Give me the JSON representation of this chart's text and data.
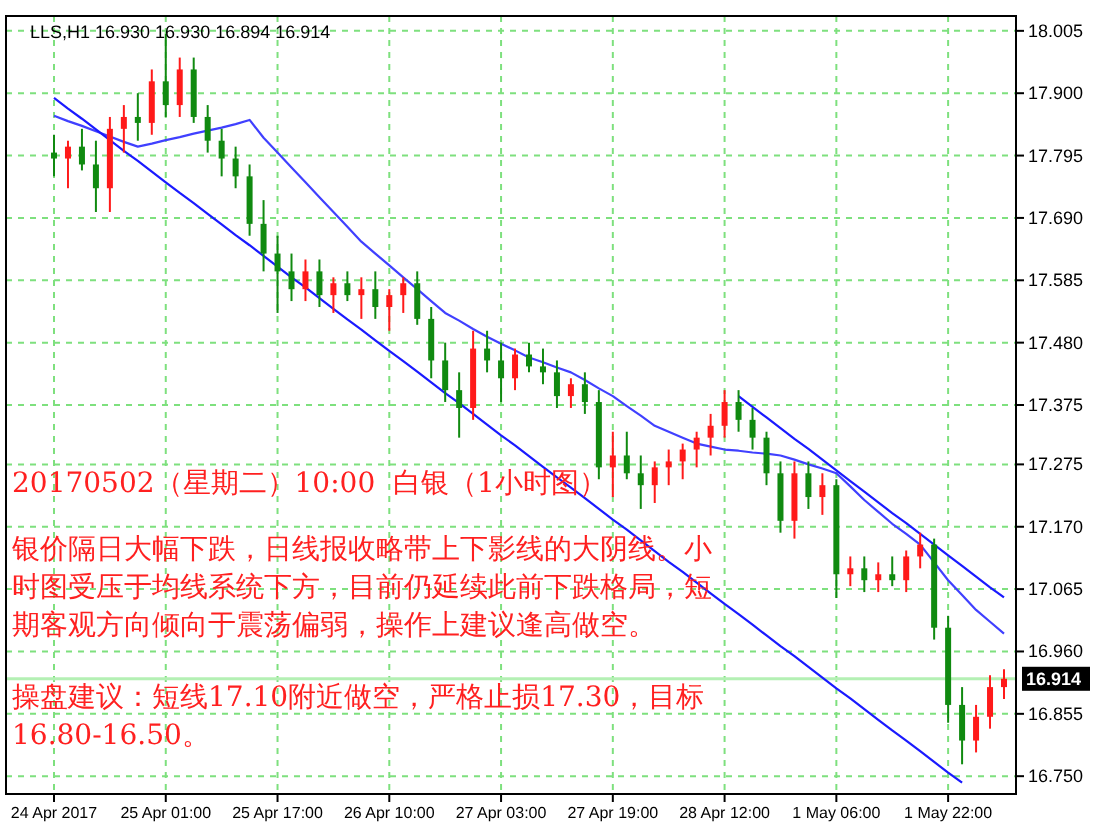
{
  "chart_data": {
    "type": "candlestick",
    "title": "LLS,H1  16.930 16.930 16.894 16.914",
    "categories": [
      "24 Apr 2017",
      null,
      null,
      null,
      null,
      null,
      null,
      null,
      "25 Apr 01:00",
      null,
      null,
      null,
      null,
      null,
      null,
      null,
      "25 Apr 17:00",
      null,
      null,
      null,
      null,
      null,
      null,
      null,
      "26 Apr 10:00",
      null,
      null,
      null,
      null,
      null,
      null,
      null,
      "27 Apr 03:00",
      null,
      null,
      null,
      null,
      null,
      null,
      null,
      "27 Apr 19:00",
      null,
      null,
      null,
      null,
      null,
      null,
      null,
      "28 Apr 12:00",
      null,
      null,
      null,
      null,
      null,
      null,
      null,
      "1 May 06:00",
      null,
      null,
      null,
      null,
      null,
      null,
      null,
      "1 May 22:00",
      null,
      null,
      null,
      null
    ],
    "ohlc": [
      [
        17.8,
        17.83,
        17.76,
        17.79
      ],
      [
        17.79,
        17.82,
        17.74,
        17.81
      ],
      [
        17.81,
        17.84,
        17.77,
        17.78
      ],
      [
        17.78,
        17.82,
        17.7,
        17.74
      ],
      [
        17.74,
        17.86,
        17.7,
        17.84
      ],
      [
        17.84,
        17.88,
        17.8,
        17.86
      ],
      [
        17.86,
        17.9,
        17.82,
        17.85
      ],
      [
        17.85,
        17.94,
        17.83,
        17.92
      ],
      [
        17.92,
        18.0,
        17.86,
        17.88
      ],
      [
        17.88,
        17.96,
        17.86,
        17.94
      ],
      [
        17.94,
        17.96,
        17.85,
        17.86
      ],
      [
        17.86,
        17.88,
        17.8,
        17.82
      ],
      [
        17.82,
        17.84,
        17.76,
        17.79
      ],
      [
        17.79,
        17.81,
        17.74,
        17.76
      ],
      [
        17.76,
        17.78,
        17.66,
        17.68
      ],
      [
        17.68,
        17.72,
        17.6,
        17.63
      ],
      [
        17.63,
        17.66,
        17.53,
        17.6
      ],
      [
        17.6,
        17.63,
        17.55,
        17.57
      ],
      [
        17.57,
        17.62,
        17.55,
        17.6
      ],
      [
        17.6,
        17.62,
        17.54,
        17.56
      ],
      [
        17.56,
        17.59,
        17.53,
        17.58
      ],
      [
        17.58,
        17.6,
        17.55,
        17.56
      ],
      [
        17.56,
        17.59,
        17.52,
        17.57
      ],
      [
        17.57,
        17.6,
        17.52,
        17.54
      ],
      [
        17.54,
        17.57,
        17.5,
        17.56
      ],
      [
        17.56,
        17.59,
        17.53,
        17.58
      ],
      [
        17.58,
        17.6,
        17.51,
        17.52
      ],
      [
        17.52,
        17.54,
        17.42,
        17.45
      ],
      [
        17.45,
        17.48,
        17.38,
        17.4
      ],
      [
        17.4,
        17.43,
        17.32,
        17.37
      ],
      [
        17.37,
        17.5,
        17.35,
        17.47
      ],
      [
        17.47,
        17.5,
        17.43,
        17.45
      ],
      [
        17.45,
        17.48,
        17.38,
        17.42
      ],
      [
        17.42,
        17.47,
        17.4,
        17.46
      ],
      [
        17.46,
        17.48,
        17.43,
        17.44
      ],
      [
        17.44,
        17.47,
        17.41,
        17.43
      ],
      [
        17.43,
        17.45,
        17.37,
        17.39
      ],
      [
        17.39,
        17.42,
        17.37,
        17.41
      ],
      [
        17.41,
        17.43,
        17.36,
        17.38
      ],
      [
        17.38,
        17.4,
        17.25,
        17.27
      ],
      [
        17.27,
        17.33,
        17.22,
        17.29
      ],
      [
        17.29,
        17.33,
        17.25,
        17.26
      ],
      [
        17.26,
        17.29,
        17.2,
        17.24
      ],
      [
        17.24,
        17.28,
        17.21,
        17.27
      ],
      [
        17.27,
        17.3,
        17.24,
        17.28
      ],
      [
        17.28,
        17.31,
        17.25,
        17.3
      ],
      [
        17.3,
        17.33,
        17.27,
        17.32
      ],
      [
        17.32,
        17.36,
        17.29,
        17.34
      ],
      [
        17.34,
        17.4,
        17.32,
        17.38
      ],
      [
        17.38,
        17.4,
        17.33,
        17.35
      ],
      [
        17.35,
        17.37,
        17.3,
        17.32
      ],
      [
        17.32,
        17.33,
        17.24,
        17.26
      ],
      [
        17.26,
        17.28,
        17.16,
        17.18
      ],
      [
        17.18,
        17.28,
        17.15,
        17.26
      ],
      [
        17.26,
        17.28,
        17.2,
        17.22
      ],
      [
        17.22,
        17.26,
        17.19,
        17.24
      ],
      [
        17.24,
        17.25,
        17.05,
        17.09
      ],
      [
        17.09,
        17.12,
        17.07,
        17.1
      ],
      [
        17.1,
        17.12,
        17.06,
        17.08
      ],
      [
        17.08,
        17.11,
        17.06,
        17.09
      ],
      [
        17.09,
        17.12,
        17.07,
        17.08
      ],
      [
        17.08,
        17.13,
        17.06,
        17.12
      ],
      [
        17.12,
        17.16,
        17.1,
        17.14
      ],
      [
        17.14,
        17.15,
        16.98,
        17.0
      ],
      [
        17.0,
        17.02,
        16.84,
        16.87
      ],
      [
        16.87,
        16.9,
        16.77,
        16.81
      ],
      [
        16.81,
        16.87,
        16.79,
        16.85
      ],
      [
        16.85,
        16.92,
        16.83,
        16.9
      ],
      [
        16.9,
        16.93,
        16.88,
        16.914
      ]
    ],
    "series": [
      {
        "type": "line",
        "color": "#4040ff",
        "values": [
          17.862,
          17.853,
          17.845,
          17.836,
          17.827,
          17.818,
          17.81,
          17.815,
          17.821,
          17.826,
          17.832,
          17.837,
          17.842,
          17.848,
          17.855,
          17.825,
          17.8,
          17.775,
          17.75,
          17.725,
          17.7,
          17.675,
          17.65,
          17.63,
          17.61,
          17.59,
          17.57,
          17.55,
          17.53,
          17.517,
          17.503,
          17.49,
          17.478,
          17.467,
          17.455,
          17.447,
          17.438,
          17.43,
          17.417,
          17.403,
          17.39,
          17.373,
          17.357,
          17.34,
          17.33,
          17.32,
          17.31,
          17.305,
          17.3,
          17.298,
          17.295,
          17.293,
          17.29,
          17.283,
          17.275,
          17.268,
          17.26,
          17.238,
          17.215,
          17.195,
          17.175,
          17.158,
          17.14,
          17.11,
          17.08,
          17.055,
          17.03,
          17.01,
          16.99
        ]
      },
      {
        "type": "line",
        "color": "#1a1aff",
        "values": [
          17.892,
          17.874,
          17.857,
          17.839,
          17.821,
          17.803,
          17.786,
          17.768,
          17.75,
          17.732,
          17.715,
          17.697,
          17.679,
          17.661,
          17.644,
          17.626,
          17.608,
          17.59,
          17.573,
          17.555,
          17.537,
          17.519,
          17.502,
          17.484,
          17.466,
          17.449,
          17.431,
          17.413,
          17.395,
          17.378,
          17.36,
          17.342,
          17.324,
          17.307,
          17.289,
          17.271,
          17.253,
          17.236,
          17.218,
          17.2,
          17.182,
          17.165,
          17.147,
          17.129,
          17.111,
          17.094,
          17.076,
          17.058,
          17.04,
          17.023,
          17.005,
          16.987,
          16.969,
          16.952,
          16.934,
          16.916,
          16.898,
          16.881,
          16.863,
          16.845,
          16.827,
          16.81,
          16.792,
          16.774,
          16.756,
          16.739,
          null,
          null,
          null
        ]
      },
      {
        "type": "line",
        "color": "#1a1aff",
        "values": [
          null,
          null,
          null,
          null,
          null,
          null,
          null,
          null,
          null,
          null,
          null,
          null,
          null,
          null,
          null,
          null,
          null,
          null,
          null,
          null,
          null,
          null,
          null,
          null,
          null,
          null,
          null,
          null,
          null,
          null,
          null,
          null,
          null,
          null,
          null,
          null,
          null,
          null,
          null,
          null,
          null,
          null,
          null,
          null,
          null,
          null,
          null,
          null,
          null,
          17.39,
          17.372,
          17.354,
          17.336,
          17.318,
          17.301,
          17.283,
          17.265,
          17.247,
          17.229,
          17.211,
          17.193,
          17.176,
          17.158,
          17.14,
          17.122,
          17.104,
          17.086,
          17.068,
          17.051
        ]
      }
    ],
    "ylim": [
      16.72,
      18.03
    ],
    "yticks": [
      {
        "value": 18.005,
        "label": "18.005"
      },
      {
        "value": 17.9,
        "label": "17.900"
      },
      {
        "value": 17.795,
        "label": "17.795"
      },
      {
        "value": 17.69,
        "label": "17.690"
      },
      {
        "value": 17.585,
        "label": "17.585"
      },
      {
        "value": 17.48,
        "label": "17.480"
      },
      {
        "value": 17.375,
        "label": "17.375"
      },
      {
        "value": 17.275,
        "label": "17.275"
      },
      {
        "value": 17.17,
        "label": "17.170"
      },
      {
        "value": 17.065,
        "label": "17.065"
      },
      {
        "value": 16.96,
        "label": "16.960"
      },
      {
        "value": 16.855,
        "label": "16.855"
      },
      {
        "value": 16.75,
        "label": "16.750"
      }
    ],
    "grid": true,
    "ref_lines": [
      {
        "axis": "y",
        "value": 16.914,
        "label": "16.914",
        "color": "#b4f0b4"
      }
    ],
    "annotations": [
      "20170502（星期二）10:00  白银（1小时图）",
      "银价隔日大幅下跌，日线报收略带上下影线的大阴线。小时图受压于均线系统下方，目前仍延续此前下跌格局，短期客观方向倾向于震荡偏弱，操作上建议逢高做空。",
      "操盘建议：短线17.10附近做空，严格止损17.30，目标16.80-16.50。"
    ]
  }
}
